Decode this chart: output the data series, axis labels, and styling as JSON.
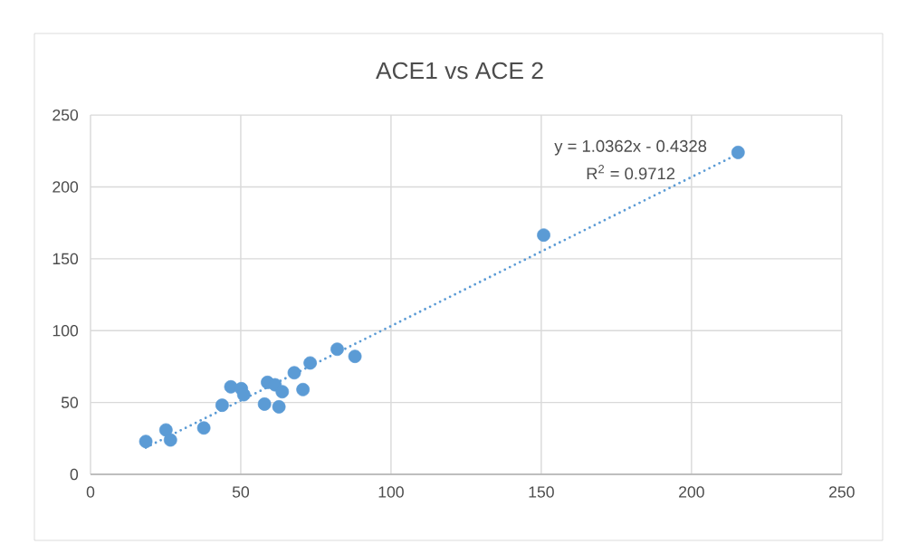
{
  "chart_data": {
    "type": "scatter",
    "title": "ACE1 vs ACE 2",
    "xlim": [
      0,
      250
    ],
    "ylim": [
      0,
      250
    ],
    "xticks": [
      0,
      50,
      100,
      150,
      200,
      250
    ],
    "yticks": [
      0,
      50,
      100,
      150,
      200,
      250
    ],
    "grid": true,
    "legend": false,
    "series": [
      {
        "color": "#5b9bd5",
        "marker": "circle",
        "x": [
          18.4,
          25.1,
          26.6,
          37.7,
          43.8,
          46.7,
          50.2,
          51.0,
          57.9,
          58.9,
          61.4,
          62.7,
          63.8,
          67.8,
          70.7,
          73.1,
          82.1,
          88.0,
          150.8,
          215.5
        ],
        "values": [
          22.9,
          30.9,
          23.9,
          32.3,
          48.1,
          60.9,
          59.6,
          55.4,
          48.9,
          64.0,
          62.3,
          47.0,
          57.5,
          70.7,
          59.0,
          77.5,
          87.1,
          82.1,
          166.5,
          224.0
        ]
      },
      {
        "type": "line",
        "color": "#5b9bd5",
        "marker": "none",
        "line_style": "dotted",
        "x": [
          18.4,
          215.5
        ],
        "values": [
          18.6,
          222.9
        ]
      }
    ],
    "annotations": [
      "y = 1.0362x - 0.4328",
      "R$^{2}$ = 0.9712"
    ]
  }
}
